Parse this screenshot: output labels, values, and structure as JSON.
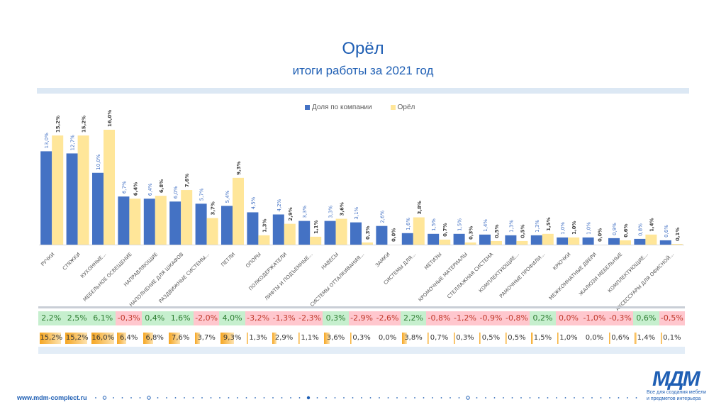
{
  "header": {
    "title": "Орёл",
    "subtitle": "итоги работы за 2021 год"
  },
  "legend": [
    {
      "label": "Доля по компании",
      "color": "#4472c4"
    },
    {
      "label": "Орёл",
      "color": "#ffe699"
    }
  ],
  "chart_data": {
    "type": "bar",
    "title": "",
    "xlabel": "",
    "ylabel": "",
    "ylim": [
      0,
      16.0
    ],
    "grid": false,
    "legend_position": "top-center",
    "categories": [
      "РУЧКИ",
      "СТЯЖКИ",
      "КУХОННЫЕ...",
      "МЕБЕЛЬНОЕ ОСВЕЩЕНИЕ",
      "НАПРАВЛЯЮЩИЕ",
      "НАПОЛНЕНИЕ ДЛЯ ШКАФОВ",
      "РАЗДВИЖНЫЕ СИСТЕМЫ...",
      "ПЕТЛИ",
      "ОПОРЫ",
      "ПОЛКОДЕРЖАТЕЛИ",
      "ЛИФТЫ И ПОДЪЕМНЫЕ...",
      "НАВЕСЫ",
      "СИСТЕМЫ ОТТАЛКИВАНИЯ...",
      "ЗАМКИ",
      "СИСТЕМЫ ДЛЯ...",
      "МЕТИЗЫ",
      "КРОМОЧНЫЕ МАТЕРИАЛЫ",
      "СТЕЛЛАЖНАЯ СИСТЕМА",
      "КОМПЛЕКТУЮЩИЕ...",
      "РАМОЧНЫЕ ПРОФИЛИ...",
      "КРЮЧКИ",
      "МЕЖКОМНАТНЫЕ ДВЕРИ",
      "ЖАЛЮЗИ МЕБЕЛЬНЫЕ",
      "КОМПЛЕКТУЮЩИЕ...",
      "АКСЕССУАРЫ ДЛЯ ОФИСНОЙ..."
    ],
    "series": [
      {
        "name": "Доля по компании",
        "color": "#4472c4",
        "values": [
          13.0,
          12.7,
          10.0,
          6.7,
          6.4,
          6.0,
          5.7,
          5.4,
          4.5,
          4.2,
          3.3,
          3.3,
          3.1,
          2.6,
          1.6,
          1.5,
          1.5,
          1.4,
          1.3,
          1.3,
          1.0,
          1.0,
          0.9,
          0.8,
          0.6
        ],
        "labels": [
          "13,0%",
          "12,7%",
          "10,0%",
          "6,7%",
          "6,4%",
          "6,0%",
          "5,7%",
          "5,4%",
          "4,5%",
          "4,2%",
          "3,3%",
          "3,3%",
          "3,1%",
          "2,6%",
          "1,6%",
          "1,5%",
          "1,5%",
          "1,4%",
          "1,3%",
          "1,3%",
          "1,0%",
          "1,0%",
          "0,9%",
          "0,8%",
          "0,6%"
        ]
      },
      {
        "name": "Орёл",
        "color": "#ffe699",
        "values": [
          15.2,
          15.2,
          16.0,
          6.4,
          6.8,
          7.6,
          3.7,
          9.3,
          1.3,
          2.9,
          1.1,
          3.6,
          0.3,
          0.0,
          3.8,
          0.7,
          0.3,
          0.5,
          0.5,
          1.5,
          1.0,
          0.0,
          0.6,
          1.4,
          0.1
        ],
        "labels": [
          "15,2%",
          "15,2%",
          "16,0%",
          "6,4%",
          "6,8%",
          "7,6%",
          "3,7%",
          "9,3%",
          "1,3%",
          "2,9%",
          "1,1%",
          "3,6%",
          "0,3%",
          "0,0%",
          "3,8%",
          "0,7%",
          "0,3%",
          "0,5%",
          "0,5%",
          "1,5%",
          "1,0%",
          "0,0%",
          "0,6%",
          "1,4%",
          "0,1%"
        ]
      }
    ]
  },
  "diff_table": {
    "values": [
      "2,2%",
      "2,5%",
      "6,1%",
      "-0,3%",
      "0,4%",
      "1,6%",
      "-2,0%",
      "4,0%",
      "-3,2%",
      "-1,3%",
      "-2,3%",
      "0,3%",
      "-2,9%",
      "-2,6%",
      "2,2%",
      "-0,8%",
      "-1,2%",
      "-0,9%",
      "-0,8%",
      "0,2%",
      "0,0%",
      "-1,0%",
      "-0,3%",
      "0,6%",
      "-0,5%"
    ],
    "positive_bg": "#c6efce",
    "positive_fg": "#2e7d32",
    "negative_bg": "#ffc7ce",
    "negative_fg": "#c0392b"
  },
  "share_table": {
    "values": [
      15.2,
      15.2,
      16.0,
      6.4,
      6.8,
      7.6,
      3.7,
      9.3,
      1.3,
      2.9,
      1.1,
      3.6,
      0.3,
      0.0,
      3.8,
      0.7,
      0.3,
      0.5,
      0.5,
      1.5,
      1.0,
      0.0,
      0.6,
      1.4,
      0.1
    ],
    "labels": [
      "15,2%",
      "15,2%",
      "16,0%",
      "6,4%",
      "6,8%",
      "7,6%",
      "3,7%",
      "9,3%",
      "1,3%",
      "2,9%",
      "1,1%",
      "3,6%",
      "0,3%",
      "0,0%",
      "3,8%",
      "0,7%",
      "0,3%",
      "0,5%",
      "0,5%",
      "1,5%",
      "1,0%",
      "0,0%",
      "0,6%",
      "1,4%",
      "0,1%"
    ],
    "max": 16.0
  },
  "footer": {
    "url": "www.mdm-complect.ru",
    "logo": "МДМ",
    "tagline_1": "Все для создания мебели",
    "tagline_2": "и предметов интерьера"
  }
}
